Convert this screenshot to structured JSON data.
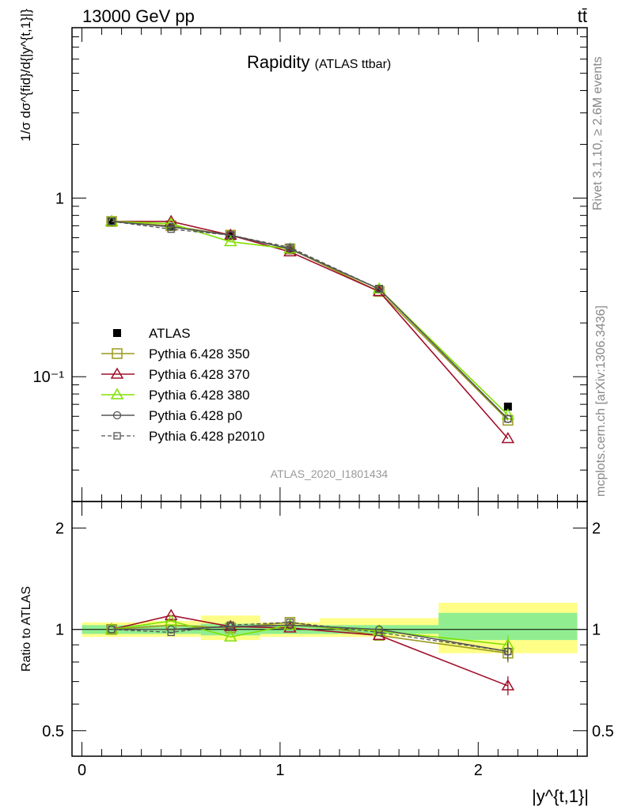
{
  "header": {
    "energy_label": "13000 GeV pp",
    "process_label": "tt̄"
  },
  "side_labels": {
    "rivet": "Rivet 3.1.10, ≥ 2.6M events",
    "mcplots": "mcplots.cern.ch [arXiv:1306.3436]"
  },
  "chart_data": [
    {
      "type": "line",
      "title": "Rapidity",
      "subtitle": "(ATLAS ttbar)",
      "analysis_id": "ATLAS_2020_I1801434",
      "ylabel": "1/σ dσ^{fid}/d{|y^{t,1}|}",
      "yscale": "log",
      "ylim": [
        0.02,
        9
      ],
      "xlim": [
        -0.05,
        2.55
      ],
      "y_ticks": [
        {
          "value": 1,
          "label": "1"
        },
        {
          "value": 0.1,
          "label": "10⁻¹"
        }
      ],
      "x": [
        0.15,
        0.45,
        0.75,
        1.05,
        1.5,
        2.15
      ],
      "bin_edges": [
        0,
        0.3,
        0.6,
        0.9,
        1.2,
        1.8,
        2.5
      ],
      "legend_position": "bottom-left",
      "series": [
        {
          "name": "ATLAS",
          "color": "#000000",
          "marker": "filled-square",
          "line": "none",
          "values": [
            0.74,
            0.69,
            0.62,
            0.51,
            0.31,
            0.068
          ]
        },
        {
          "name": "Pythia 6.428 350",
          "color": "#9a9a1e",
          "marker": "open-square",
          "line": "solid",
          "values": [
            0.74,
            0.7,
            0.62,
            0.52,
            0.3,
            0.057
          ]
        },
        {
          "name": "Pythia 6.428 370",
          "color": "#a0102a",
          "marker": "open-triangle",
          "line": "solid",
          "values": [
            0.74,
            0.74,
            0.62,
            0.5,
            0.3,
            0.045
          ]
        },
        {
          "name": "Pythia 6.428 380",
          "color": "#80e000",
          "marker": "open-triangle",
          "line": "solid",
          "values": [
            0.74,
            0.72,
            0.57,
            0.52,
            0.31,
            0.061
          ]
        },
        {
          "name": "Pythia 6.428 p0",
          "color": "#555555",
          "marker": "open-circle",
          "line": "solid",
          "values": [
            0.74,
            0.69,
            0.62,
            0.52,
            0.31,
            0.058
          ]
        },
        {
          "name": "Pythia 6.428 p2010",
          "color": "#555555",
          "marker": "open-square-small",
          "line": "dashed",
          "values": [
            0.74,
            0.67,
            0.62,
            0.53,
            0.31,
            0.058
          ]
        }
      ]
    },
    {
      "type": "line",
      "ylabel": "Ratio to ATLAS",
      "xlabel": "|y^{t,1}|",
      "yscale": "log",
      "ylim": [
        0.42,
        2.4
      ],
      "xlim": [
        -0.05,
        2.55
      ],
      "x_ticks": [
        {
          "value": 0,
          "label": "0"
        },
        {
          "value": 1,
          "label": "1"
        },
        {
          "value": 2,
          "label": "2"
        }
      ],
      "y_ticks": [
        {
          "value": 0.5,
          "label": "0.5"
        },
        {
          "value": 1,
          "label": "1"
        },
        {
          "value": 2,
          "label": "2"
        }
      ],
      "x": [
        0.15,
        0.45,
        0.75,
        1.05,
        1.5,
        2.15
      ],
      "bin_edges": [
        0,
        0.3,
        0.6,
        0.9,
        1.2,
        1.8,
        2.5
      ],
      "uncertainty_band": {
        "inner_color": "#90ee90",
        "outer_color": "#ffff88",
        "inner": [
          [
            0.97,
            1.03
          ],
          [
            0.97,
            1.03
          ],
          [
            0.96,
            1.04
          ],
          [
            0.97,
            1.03
          ],
          [
            0.97,
            1.03
          ],
          [
            0.93,
            1.12
          ]
        ],
        "outer": [
          [
            0.95,
            1.05
          ],
          [
            0.95,
            1.06
          ],
          [
            0.93,
            1.1
          ],
          [
            0.95,
            1.05
          ],
          [
            0.95,
            1.08
          ],
          [
            0.85,
            1.2
          ]
        ]
      },
      "series": [
        {
          "name": "Pythia 6.428 350",
          "color": "#9a9a1e",
          "values": [
            1.0,
            1.03,
            1.01,
            1.05,
            0.96,
            0.85
          ]
        },
        {
          "name": "Pythia 6.428 370",
          "color": "#a0102a",
          "values": [
            1.0,
            1.1,
            1.02,
            1.01,
            0.96,
            0.68
          ]
        },
        {
          "name": "Pythia 6.428 380",
          "color": "#80e000",
          "values": [
            1.0,
            1.06,
            0.95,
            1.03,
            0.99,
            0.9
          ]
        },
        {
          "name": "Pythia 6.428 p0",
          "color": "#555555",
          "values": [
            1.0,
            1.0,
            1.02,
            1.03,
            1.0,
            0.86
          ]
        },
        {
          "name": "Pythia 6.428 p2010",
          "color": "#555555",
          "values": [
            1.0,
            0.98,
            1.03,
            1.05,
            0.98,
            0.86
          ]
        }
      ]
    }
  ]
}
